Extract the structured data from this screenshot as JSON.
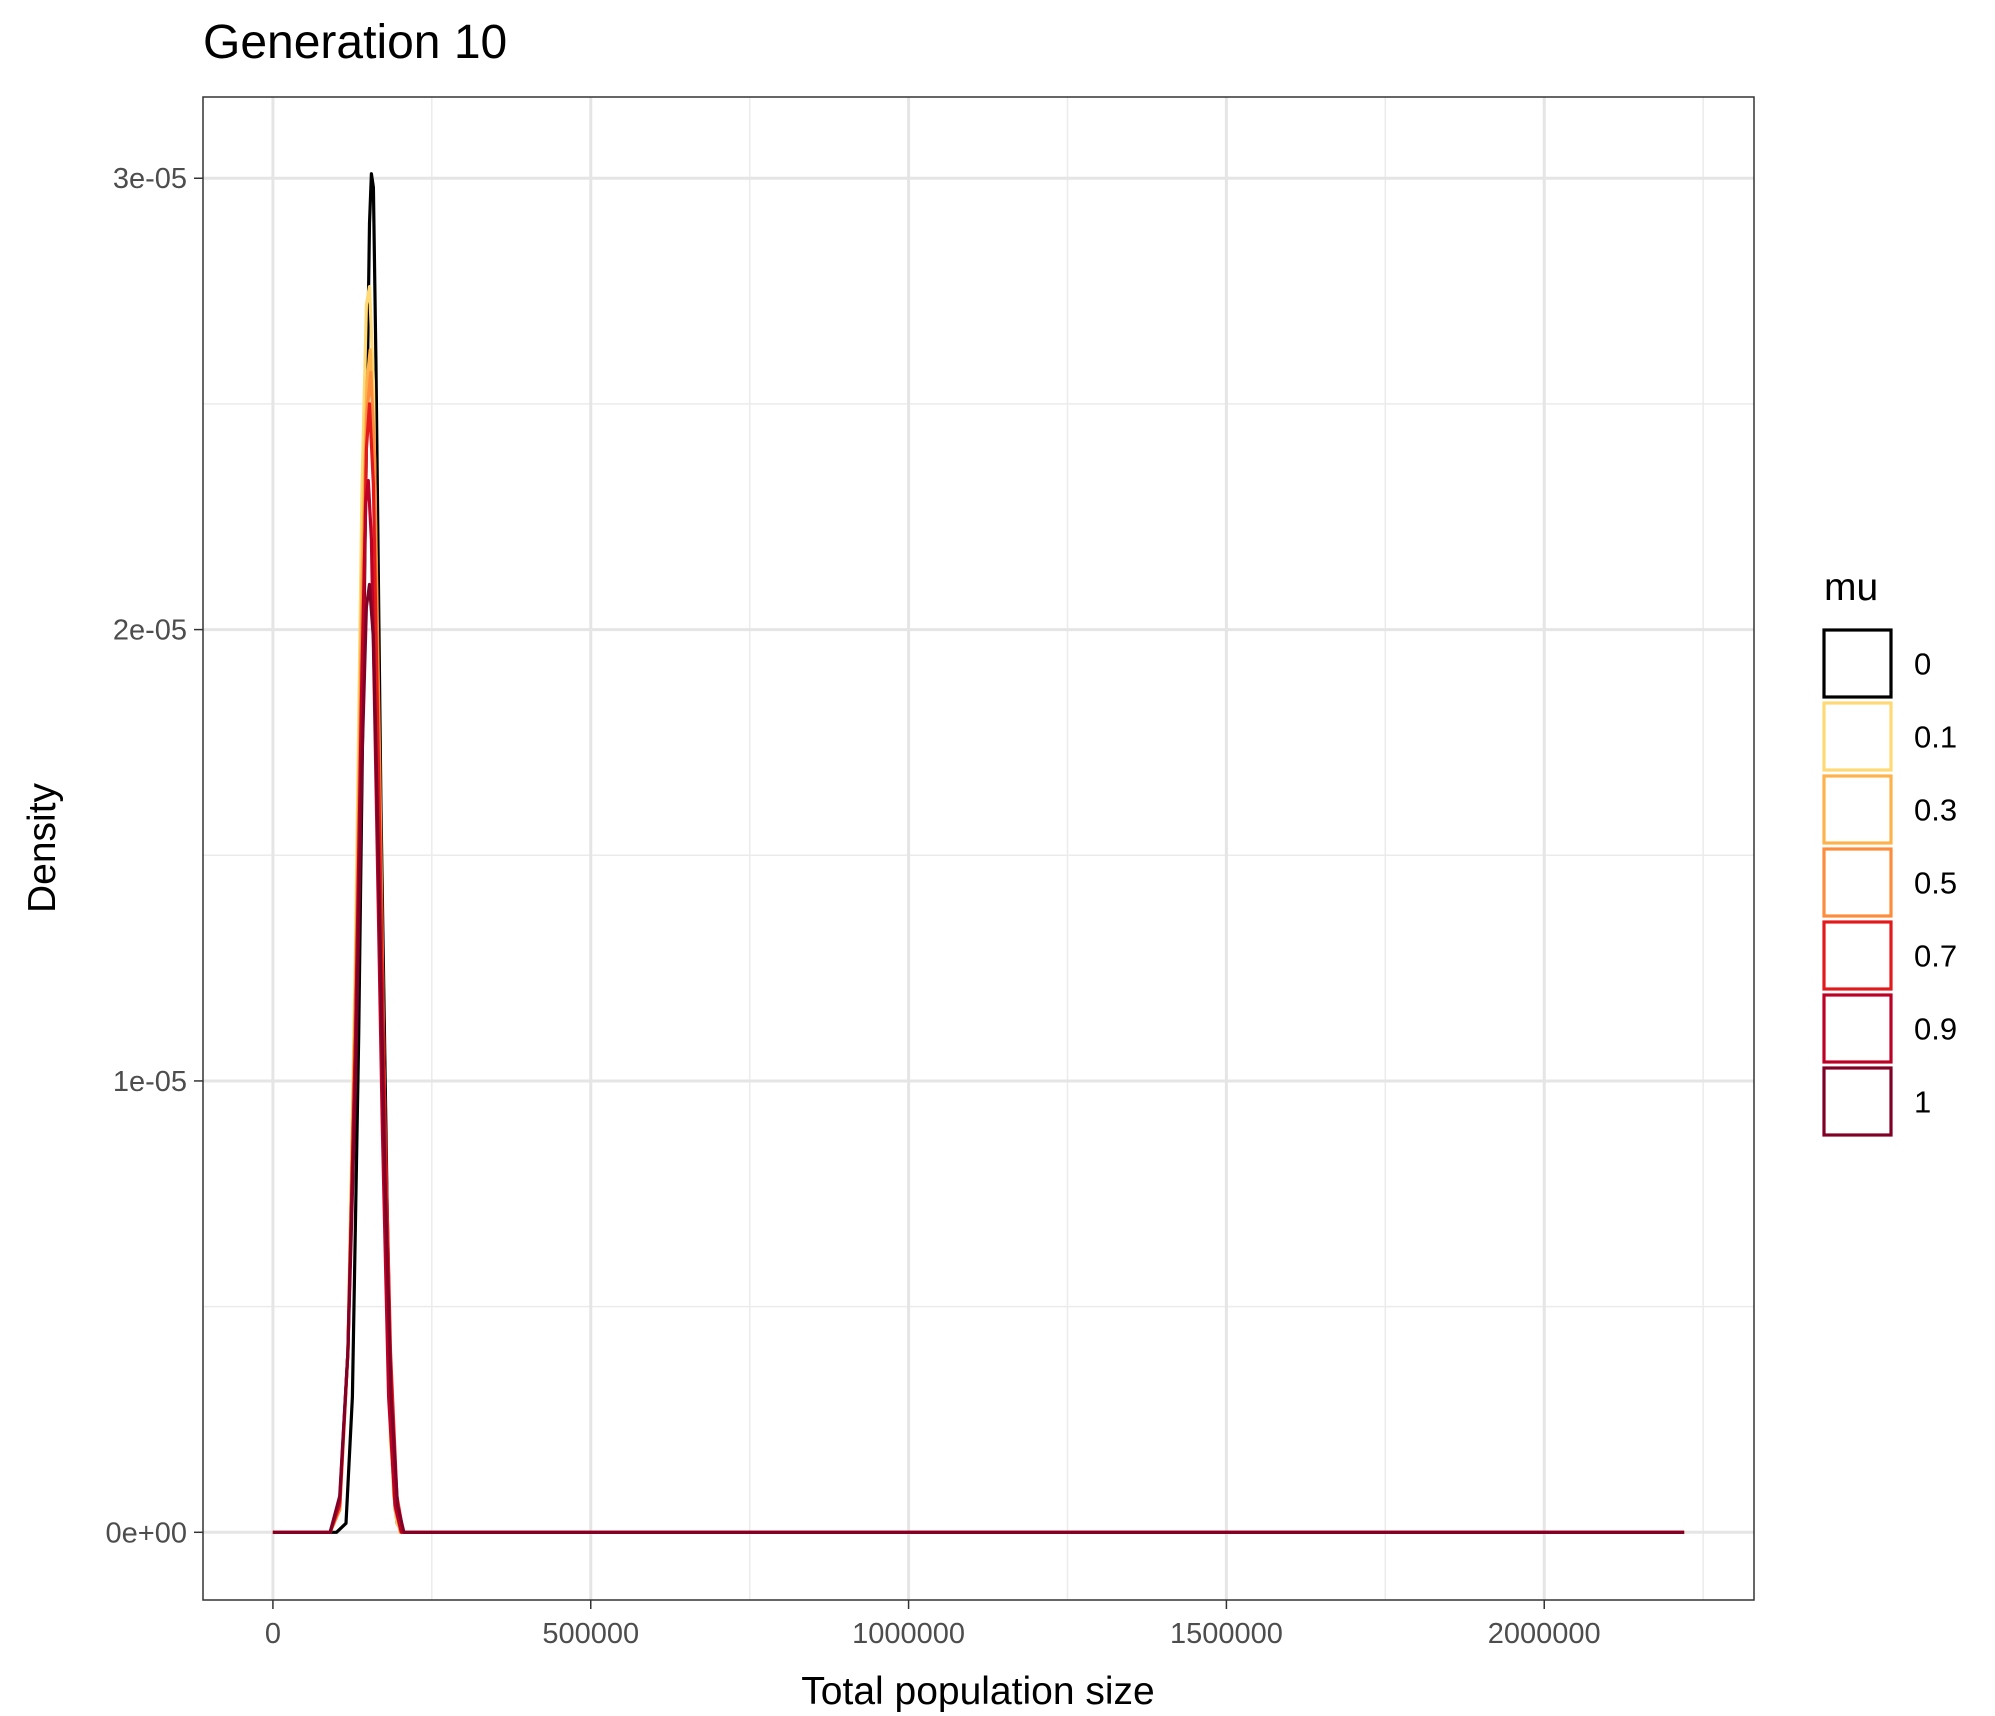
{
  "chart_data": {
    "type": "line",
    "title": "Generation 10",
    "xlabel": "Total population size",
    "ylabel": "Density",
    "xlim": [
      -110000,
      2330000
    ],
    "ylim": [
      -1.5e-06,
      3.18e-05
    ],
    "x_ticks": [
      0,
      500000,
      1000000,
      1500000,
      2000000
    ],
    "x_tick_labels": [
      "0",
      "500000",
      "1000000",
      "1500000",
      "2000000"
    ],
    "x_minor_ticks": [
      250000,
      750000,
      1250000,
      1750000,
      2250000
    ],
    "y_ticks": [
      0,
      1e-05,
      2e-05,
      3e-05
    ],
    "y_tick_labels": [
      "0e+00",
      "1e-05",
      "2e-05",
      "3e-05"
    ],
    "y_minor_ticks": [
      5e-06,
      1.5e-05,
      2.5e-05
    ],
    "grid": true,
    "legend": {
      "title": "mu",
      "position": "right"
    },
    "series": [
      {
        "name": "0",
        "color": "#000000",
        "x": [
          0,
          100000,
          115000,
          125000,
          135000,
          145000,
          152000,
          155000,
          158000,
          162000,
          170000,
          180000,
          188000,
          195000,
          205000,
          220000,
          2220000
        ],
        "y": [
          0,
          0,
          2e-07,
          3e-06,
          1.1e-05,
          2.2e-05,
          2.9e-05,
          3.01e-05,
          2.98e-05,
          2.6e-05,
          1.6e-05,
          7e-06,
          1.5e-06,
          2e-07,
          0,
          0,
          0
        ]
      },
      {
        "name": "0.1",
        "color": "#FED976",
        "x": [
          0,
          90000,
          105000,
          118000,
          130000,
          140000,
          147000,
          152000,
          158000,
          166000,
          175000,
          185000,
          195000,
          205000,
          220000,
          2220000
        ],
        "y": [
          0,
          0,
          5e-07,
          4e-06,
          1.3e-05,
          2.3e-05,
          2.72e-05,
          2.76e-05,
          2.55e-05,
          1.8e-05,
          9e-06,
          2e-06,
          2e-07,
          0,
          0,
          0
        ]
      },
      {
        "name": "0.3",
        "color": "#FEB24C",
        "x": [
          0,
          90000,
          105000,
          118000,
          130000,
          140000,
          148000,
          153000,
          158000,
          166000,
          175000,
          183000,
          190000,
          200000,
          215000,
          2220000
        ],
        "y": [
          0,
          0,
          5e-07,
          4e-06,
          1.2e-05,
          2.1e-05,
          2.55e-05,
          2.62e-05,
          2.45e-05,
          1.8e-05,
          1e-05,
          3.5e-06,
          8e-07,
          0,
          0,
          0
        ]
      },
      {
        "name": "0.5",
        "color": "#FD8D3C",
        "x": [
          0,
          90000,
          105000,
          118000,
          130000,
          140000,
          148000,
          154000,
          160000,
          168000,
          176000,
          184000,
          192000,
          202000,
          218000,
          2220000
        ],
        "y": [
          0,
          0,
          5e-07,
          4e-06,
          1.2e-05,
          2e-05,
          2.48e-05,
          2.57e-05,
          2.38e-05,
          1.7e-05,
          9e-06,
          3e-06,
          5e-07,
          0,
          0,
          0
        ]
      },
      {
        "name": "0.7",
        "color": "#E31A1C",
        "x": [
          0,
          90000,
          105000,
          118000,
          130000,
          140000,
          147000,
          152000,
          158000,
          166000,
          175000,
          185000,
          195000,
          205000,
          220000,
          2220000
        ],
        "y": [
          0,
          0,
          6e-07,
          4e-06,
          1.1e-05,
          1.8e-05,
          2.4e-05,
          2.5e-05,
          2.32e-05,
          1.7e-05,
          1e-05,
          4e-06,
          8e-07,
          0,
          0,
          0
        ]
      },
      {
        "name": "0.9",
        "color": "#BD0026",
        "x": [
          0,
          90000,
          105000,
          118000,
          130000,
          140000,
          146000,
          150000,
          155000,
          163000,
          172000,
          182000,
          192000,
          202000,
          218000,
          2220000
        ],
        "y": [
          0,
          0,
          7e-07,
          4e-06,
          1.1e-05,
          1.9e-05,
          2.28e-05,
          2.33e-05,
          2.2e-05,
          1.6e-05,
          9e-06,
          3e-06,
          6e-07,
          0,
          0,
          0
        ]
      },
      {
        "name": "1",
        "color": "#800026",
        "x": [
          0,
          90000,
          105000,
          118000,
          130000,
          140000,
          147000,
          152000,
          158000,
          166000,
          176000,
          186000,
          196000,
          206000,
          222000,
          2220000
        ],
        "y": [
          0,
          0,
          8e-07,
          4e-06,
          1e-05,
          1.7e-05,
          2.05e-05,
          2.1e-05,
          1.98e-05,
          1.5e-05,
          8e-06,
          3e-06,
          6e-07,
          0,
          0,
          0
        ]
      }
    ]
  }
}
